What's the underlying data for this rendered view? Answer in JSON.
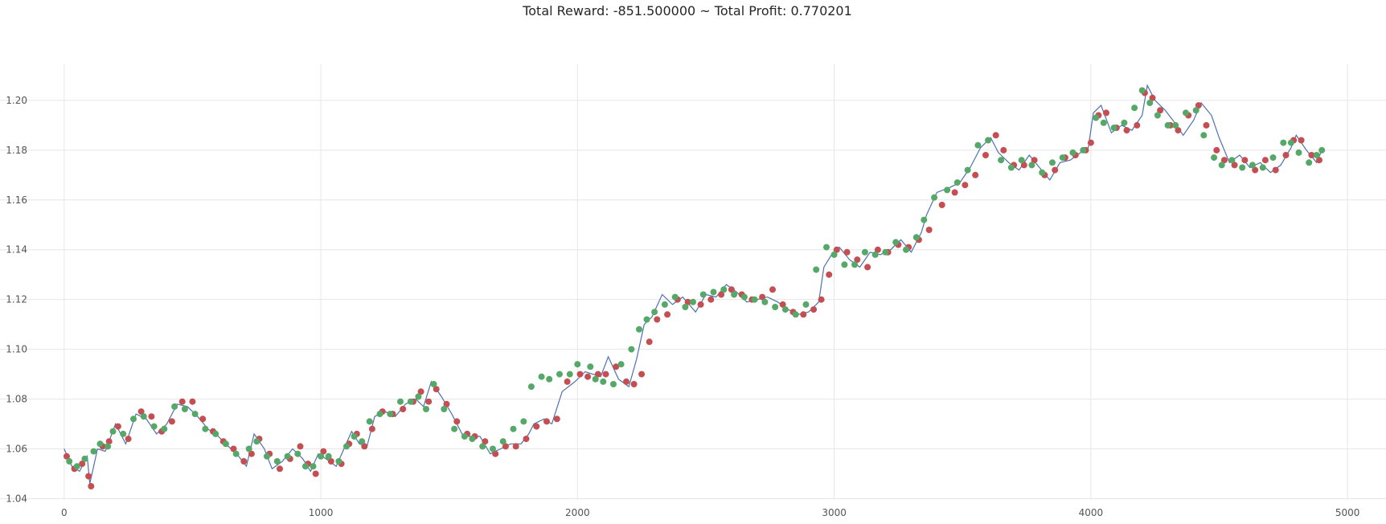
{
  "chart_data": {
    "type": "line",
    "title": "Total Reward: -851.500000 ~ Total Profit: 0.770201",
    "xlabel": "",
    "ylabel": "",
    "xlim": [
      -250,
      5150
    ],
    "ylim": [
      1.0395,
      1.2145
    ],
    "grid": true,
    "x_ticks": [
      0,
      1000,
      2000,
      3000,
      4000,
      5000
    ],
    "x_tick_labels": [
      "0",
      "1000",
      "2000",
      "3000",
      "4000",
      "5000"
    ],
    "y_ticks": [
      1.04,
      1.06,
      1.08,
      1.1,
      1.12,
      1.14,
      1.16,
      1.18,
      1.2
    ],
    "y_tick_labels": [
      "1.04",
      "1.06",
      "1.08",
      "1.10",
      "1.12",
      "1.14",
      "1.16",
      "1.18",
      "1.20"
    ],
    "series": [
      {
        "marker": "line",
        "color": "#4c72b0",
        "x": [
          0,
          30,
          60,
          90,
          100,
          130,
          160,
          200,
          240,
          280,
          320,
          360,
          400,
          440,
          480,
          520,
          560,
          600,
          640,
          680,
          710,
          740,
          780,
          810,
          850,
          890,
          930,
          960,
          990,
          1020,
          1060,
          1090,
          1120,
          1150,
          1180,
          1210,
          1250,
          1290,
          1330,
          1370,
          1400,
          1430,
          1470,
          1510,
          1550,
          1580,
          1620,
          1660,
          1700,
          1740,
          1780,
          1810,
          1830,
          1870,
          1900,
          1940,
          1990,
          2030,
          2060,
          2090,
          2120,
          2160,
          2200,
          2230,
          2260,
          2290,
          2330,
          2370,
          2410,
          2460,
          2500,
          2540,
          2580,
          2620,
          2660,
          2700,
          2740,
          2780,
          2820,
          2860,
          2900,
          2940,
          2960,
          2990,
          3020,
          3060,
          3100,
          3140,
          3180,
          3220,
          3260,
          3300,
          3340,
          3360,
          3400,
          3450,
          3490,
          3530,
          3570,
          3610,
          3640,
          3680,
          3720,
          3760,
          3800,
          3840,
          3880,
          3920,
          3960,
          3990,
          4010,
          4040,
          4080,
          4120,
          4160,
          4200,
          4220,
          4250,
          4290,
          4320,
          4360,
          4400,
          4430,
          4470,
          4500,
          4540,
          4580,
          4620,
          4660,
          4700,
          4740,
          4780,
          4800,
          4840,
          4880,
          4900
        ],
        "y": [
          1.06,
          1.053,
          1.051,
          1.057,
          1.046,
          1.06,
          1.059,
          1.07,
          1.062,
          1.074,
          1.072,
          1.066,
          1.07,
          1.078,
          1.077,
          1.073,
          1.068,
          1.065,
          1.061,
          1.057,
          1.053,
          1.066,
          1.06,
          1.052,
          1.055,
          1.06,
          1.056,
          1.051,
          1.058,
          1.056,
          1.053,
          1.06,
          1.067,
          1.062,
          1.061,
          1.073,
          1.075,
          1.073,
          1.078,
          1.08,
          1.077,
          1.087,
          1.081,
          1.074,
          1.066,
          1.065,
          1.065,
          1.058,
          1.06,
          1.062,
          1.062,
          1.066,
          1.07,
          1.072,
          1.07,
          1.083,
          1.087,
          1.091,
          1.09,
          1.089,
          1.097,
          1.088,
          1.085,
          1.096,
          1.11,
          1.113,
          1.122,
          1.118,
          1.121,
          1.115,
          1.122,
          1.121,
          1.126,
          1.123,
          1.119,
          1.12,
          1.121,
          1.119,
          1.116,
          1.114,
          1.115,
          1.119,
          1.133,
          1.138,
          1.141,
          1.136,
          1.133,
          1.139,
          1.138,
          1.14,
          1.144,
          1.139,
          1.147,
          1.154,
          1.163,
          1.165,
          1.167,
          1.173,
          1.181,
          1.185,
          1.179,
          1.175,
          1.172,
          1.178,
          1.173,
          1.168,
          1.175,
          1.176,
          1.179,
          1.181,
          1.195,
          1.198,
          1.187,
          1.19,
          1.188,
          1.194,
          1.206,
          1.2,
          1.196,
          1.192,
          1.186,
          1.192,
          1.199,
          1.194,
          1.185,
          1.175,
          1.178,
          1.173,
          1.175,
          1.171,
          1.174,
          1.181,
          1.186,
          1.18,
          1.175,
          1.18
        ]
      },
      {
        "marker": "red-dots",
        "color": "#c44e52",
        "x": [
          10,
          40,
          70,
          95,
          105,
          150,
          175,
          210,
          250,
          300,
          340,
          380,
          420,
          460,
          500,
          540,
          580,
          620,
          660,
          700,
          730,
          760,
          800,
          840,
          880,
          920,
          950,
          980,
          1010,
          1040,
          1080,
          1110,
          1140,
          1170,
          1200,
          1240,
          1280,
          1320,
          1360,
          1390,
          1420,
          1450,
          1490,
          1530,
          1570,
          1600,
          1640,
          1680,
          1720,
          1760,
          1800,
          1840,
          1880,
          1920,
          1960,
          2010,
          2040,
          2080,
          2110,
          2150,
          2190,
          2220,
          2250,
          2280,
          2310,
          2350,
          2390,
          2430,
          2480,
          2520,
          2560,
          2600,
          2640,
          2680,
          2720,
          2760,
          2800,
          2840,
          2880,
          2920,
          2950,
          2980,
          3010,
          3050,
          3090,
          3130,
          3170,
          3210,
          3250,
          3290,
          3330,
          3370,
          3420,
          3470,
          3510,
          3550,
          3590,
          3630,
          3660,
          3700,
          3740,
          3780,
          3820,
          3860,
          3900,
          3940,
          3980,
          4000,
          4030,
          4060,
          4100,
          4140,
          4180,
          4210,
          4240,
          4270,
          4310,
          4340,
          4380,
          4420,
          4450,
          4490,
          4520,
          4560,
          4600,
          4640,
          4680,
          4720,
          4760,
          4790,
          4820,
          4860,
          4890
        ],
        "y": [
          1.057,
          1.052,
          1.054,
          1.049,
          1.045,
          1.061,
          1.063,
          1.069,
          1.064,
          1.075,
          1.073,
          1.067,
          1.071,
          1.079,
          1.079,
          1.072,
          1.067,
          1.063,
          1.06,
          1.055,
          1.058,
          1.064,
          1.058,
          1.052,
          1.056,
          1.061,
          1.054,
          1.05,
          1.059,
          1.055,
          1.054,
          1.062,
          1.066,
          1.061,
          1.068,
          1.075,
          1.074,
          1.076,
          1.079,
          1.083,
          1.079,
          1.084,
          1.078,
          1.071,
          1.066,
          1.065,
          1.063,
          1.058,
          1.061,
          1.061,
          1.064,
          1.069,
          1.071,
          1.072,
          1.087,
          1.09,
          1.089,
          1.09,
          1.09,
          1.093,
          1.087,
          1.086,
          1.09,
          1.103,
          1.112,
          1.114,
          1.12,
          1.119,
          1.118,
          1.12,
          1.122,
          1.124,
          1.122,
          1.12,
          1.121,
          1.124,
          1.118,
          1.115,
          1.114,
          1.116,
          1.12,
          1.13,
          1.14,
          1.139,
          1.136,
          1.133,
          1.14,
          1.139,
          1.142,
          1.141,
          1.144,
          1.148,
          1.158,
          1.163,
          1.166,
          1.17,
          1.178,
          1.186,
          1.18,
          1.174,
          1.174,
          1.176,
          1.17,
          1.172,
          1.177,
          1.178,
          1.18,
          1.183,
          1.194,
          1.195,
          1.189,
          1.188,
          1.19,
          1.203,
          1.201,
          1.196,
          1.19,
          1.188,
          1.194,
          1.198,
          1.19,
          1.18,
          1.176,
          1.174,
          1.176,
          1.172,
          1.176,
          1.172,
          1.178,
          1.184,
          1.184,
          1.178,
          1.176
        ]
      },
      {
        "marker": "green-dots",
        "color": "#55a868",
        "x": [
          20,
          50,
          80,
          115,
          140,
          170,
          190,
          230,
          270,
          310,
          350,
          390,
          430,
          470,
          510,
          550,
          590,
          630,
          670,
          720,
          750,
          790,
          830,
          870,
          910,
          940,
          970,
          1000,
          1030,
          1070,
          1100,
          1130,
          1160,
          1190,
          1230,
          1270,
          1310,
          1350,
          1380,
          1410,
          1440,
          1480,
          1520,
          1560,
          1590,
          1630,
          1670,
          1710,
          1750,
          1790,
          1820,
          1860,
          1890,
          1930,
          1970,
          2000,
          2050,
          2070,
          2100,
          2140,
          2170,
          2210,
          2240,
          2270,
          2300,
          2340,
          2380,
          2420,
          2450,
          2490,
          2530,
          2570,
          2610,
          2650,
          2690,
          2730,
          2770,
          2810,
          2850,
          2890,
          2930,
          2970,
          3000,
          3040,
          3080,
          3120,
          3160,
          3200,
          3240,
          3280,
          3320,
          3350,
          3390,
          3440,
          3480,
          3520,
          3560,
          3600,
          3650,
          3690,
          3730,
          3770,
          3810,
          3850,
          3890,
          3930,
          3970,
          4020,
          4050,
          4090,
          4130,
          4170,
          4200,
          4230,
          4260,
          4300,
          4330,
          4370,
          4410,
          4440,
          4480,
          4510,
          4550,
          4590,
          4630,
          4670,
          4710,
          4750,
          4780,
          4810,
          4850,
          4880,
          4900
        ],
        "y": [
          1.055,
          1.053,
          1.056,
          1.059,
          1.062,
          1.061,
          1.067,
          1.066,
          1.072,
          1.073,
          1.069,
          1.068,
          1.077,
          1.076,
          1.074,
          1.068,
          1.066,
          1.062,
          1.058,
          1.06,
          1.063,
          1.057,
          1.055,
          1.057,
          1.058,
          1.053,
          1.053,
          1.057,
          1.057,
          1.055,
          1.061,
          1.065,
          1.063,
          1.071,
          1.074,
          1.074,
          1.079,
          1.079,
          1.081,
          1.076,
          1.086,
          1.076,
          1.068,
          1.065,
          1.064,
          1.061,
          1.06,
          1.063,
          1.068,
          1.071,
          1.085,
          1.089,
          1.088,
          1.09,
          1.09,
          1.094,
          1.093,
          1.088,
          1.087,
          1.086,
          1.094,
          1.1,
          1.108,
          1.112,
          1.115,
          1.118,
          1.121,
          1.117,
          1.119,
          1.122,
          1.123,
          1.124,
          1.122,
          1.121,
          1.12,
          1.119,
          1.117,
          1.116,
          1.114,
          1.118,
          1.132,
          1.141,
          1.138,
          1.134,
          1.134,
          1.139,
          1.138,
          1.139,
          1.143,
          1.14,
          1.145,
          1.152,
          1.161,
          1.164,
          1.167,
          1.172,
          1.182,
          1.184,
          1.176,
          1.173,
          1.176,
          1.174,
          1.171,
          1.175,
          1.177,
          1.179,
          1.18,
          1.193,
          1.191,
          1.189,
          1.191,
          1.197,
          1.204,
          1.199,
          1.194,
          1.19,
          1.19,
          1.195,
          1.196,
          1.186,
          1.177,
          1.174,
          1.176,
          1.173,
          1.174,
          1.173,
          1.177,
          1.183,
          1.183,
          1.179,
          1.175,
          1.178,
          1.18
        ]
      }
    ]
  }
}
